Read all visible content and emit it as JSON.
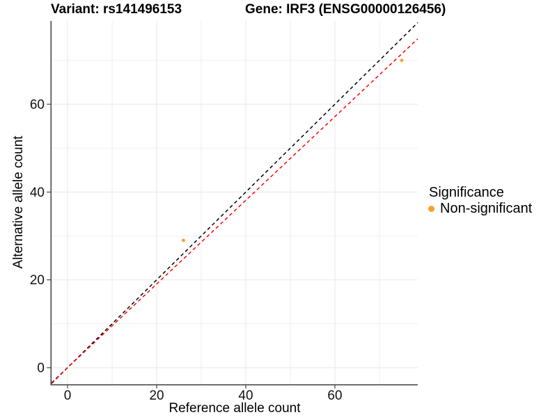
{
  "titles": {
    "variant": "Variant: rs141496153",
    "gene": "Gene: IRF3 (ENSG00000126456)"
  },
  "axes": {
    "x": {
      "title": "Reference allele count"
    },
    "y": {
      "title": "Alternative allele count"
    }
  },
  "legend": {
    "title": "Significance",
    "position": "right",
    "items": [
      {
        "label": "Non-significant",
        "color": "#F9A02C",
        "marker": "filled-circle"
      }
    ]
  },
  "colors": {
    "background": "#FFFFFF",
    "grid": "#EBEBEB",
    "axis": "#333333",
    "tick": "#333333",
    "point": "#F9A02C",
    "identity_line": "#000000",
    "fit_line": "#FF0000"
  },
  "chart_data": {
    "type": "scatter",
    "title": "Variant: rs141496153   Gene: IRF3 (ENSG00000126456)",
    "xlabel": "Reference allele count",
    "ylabel": "Alternative allele count",
    "points": [
      {
        "x": 26,
        "y": 29,
        "series": "Non-significant"
      },
      {
        "x": 75,
        "y": 70,
        "series": "Non-significant"
      }
    ],
    "lines": [
      {
        "name": "identity-line",
        "slope": 1.0,
        "intercept": 0,
        "color": "#000000",
        "style": "dashed"
      },
      {
        "name": "regression-line",
        "slope": 0.953,
        "intercept": 0,
        "color": "#FF0000",
        "style": "dashed"
      }
    ],
    "xlim": [
      -3.6,
      78.6
    ],
    "ylim": [
      -3.8,
      79.0
    ],
    "x_ticks": [
      0,
      20,
      40,
      60
    ],
    "y_ticks": [
      0,
      20,
      40,
      60
    ],
    "grid_minor": [
      10,
      30,
      50,
      70
    ],
    "grid": true,
    "legend_position": "right"
  }
}
